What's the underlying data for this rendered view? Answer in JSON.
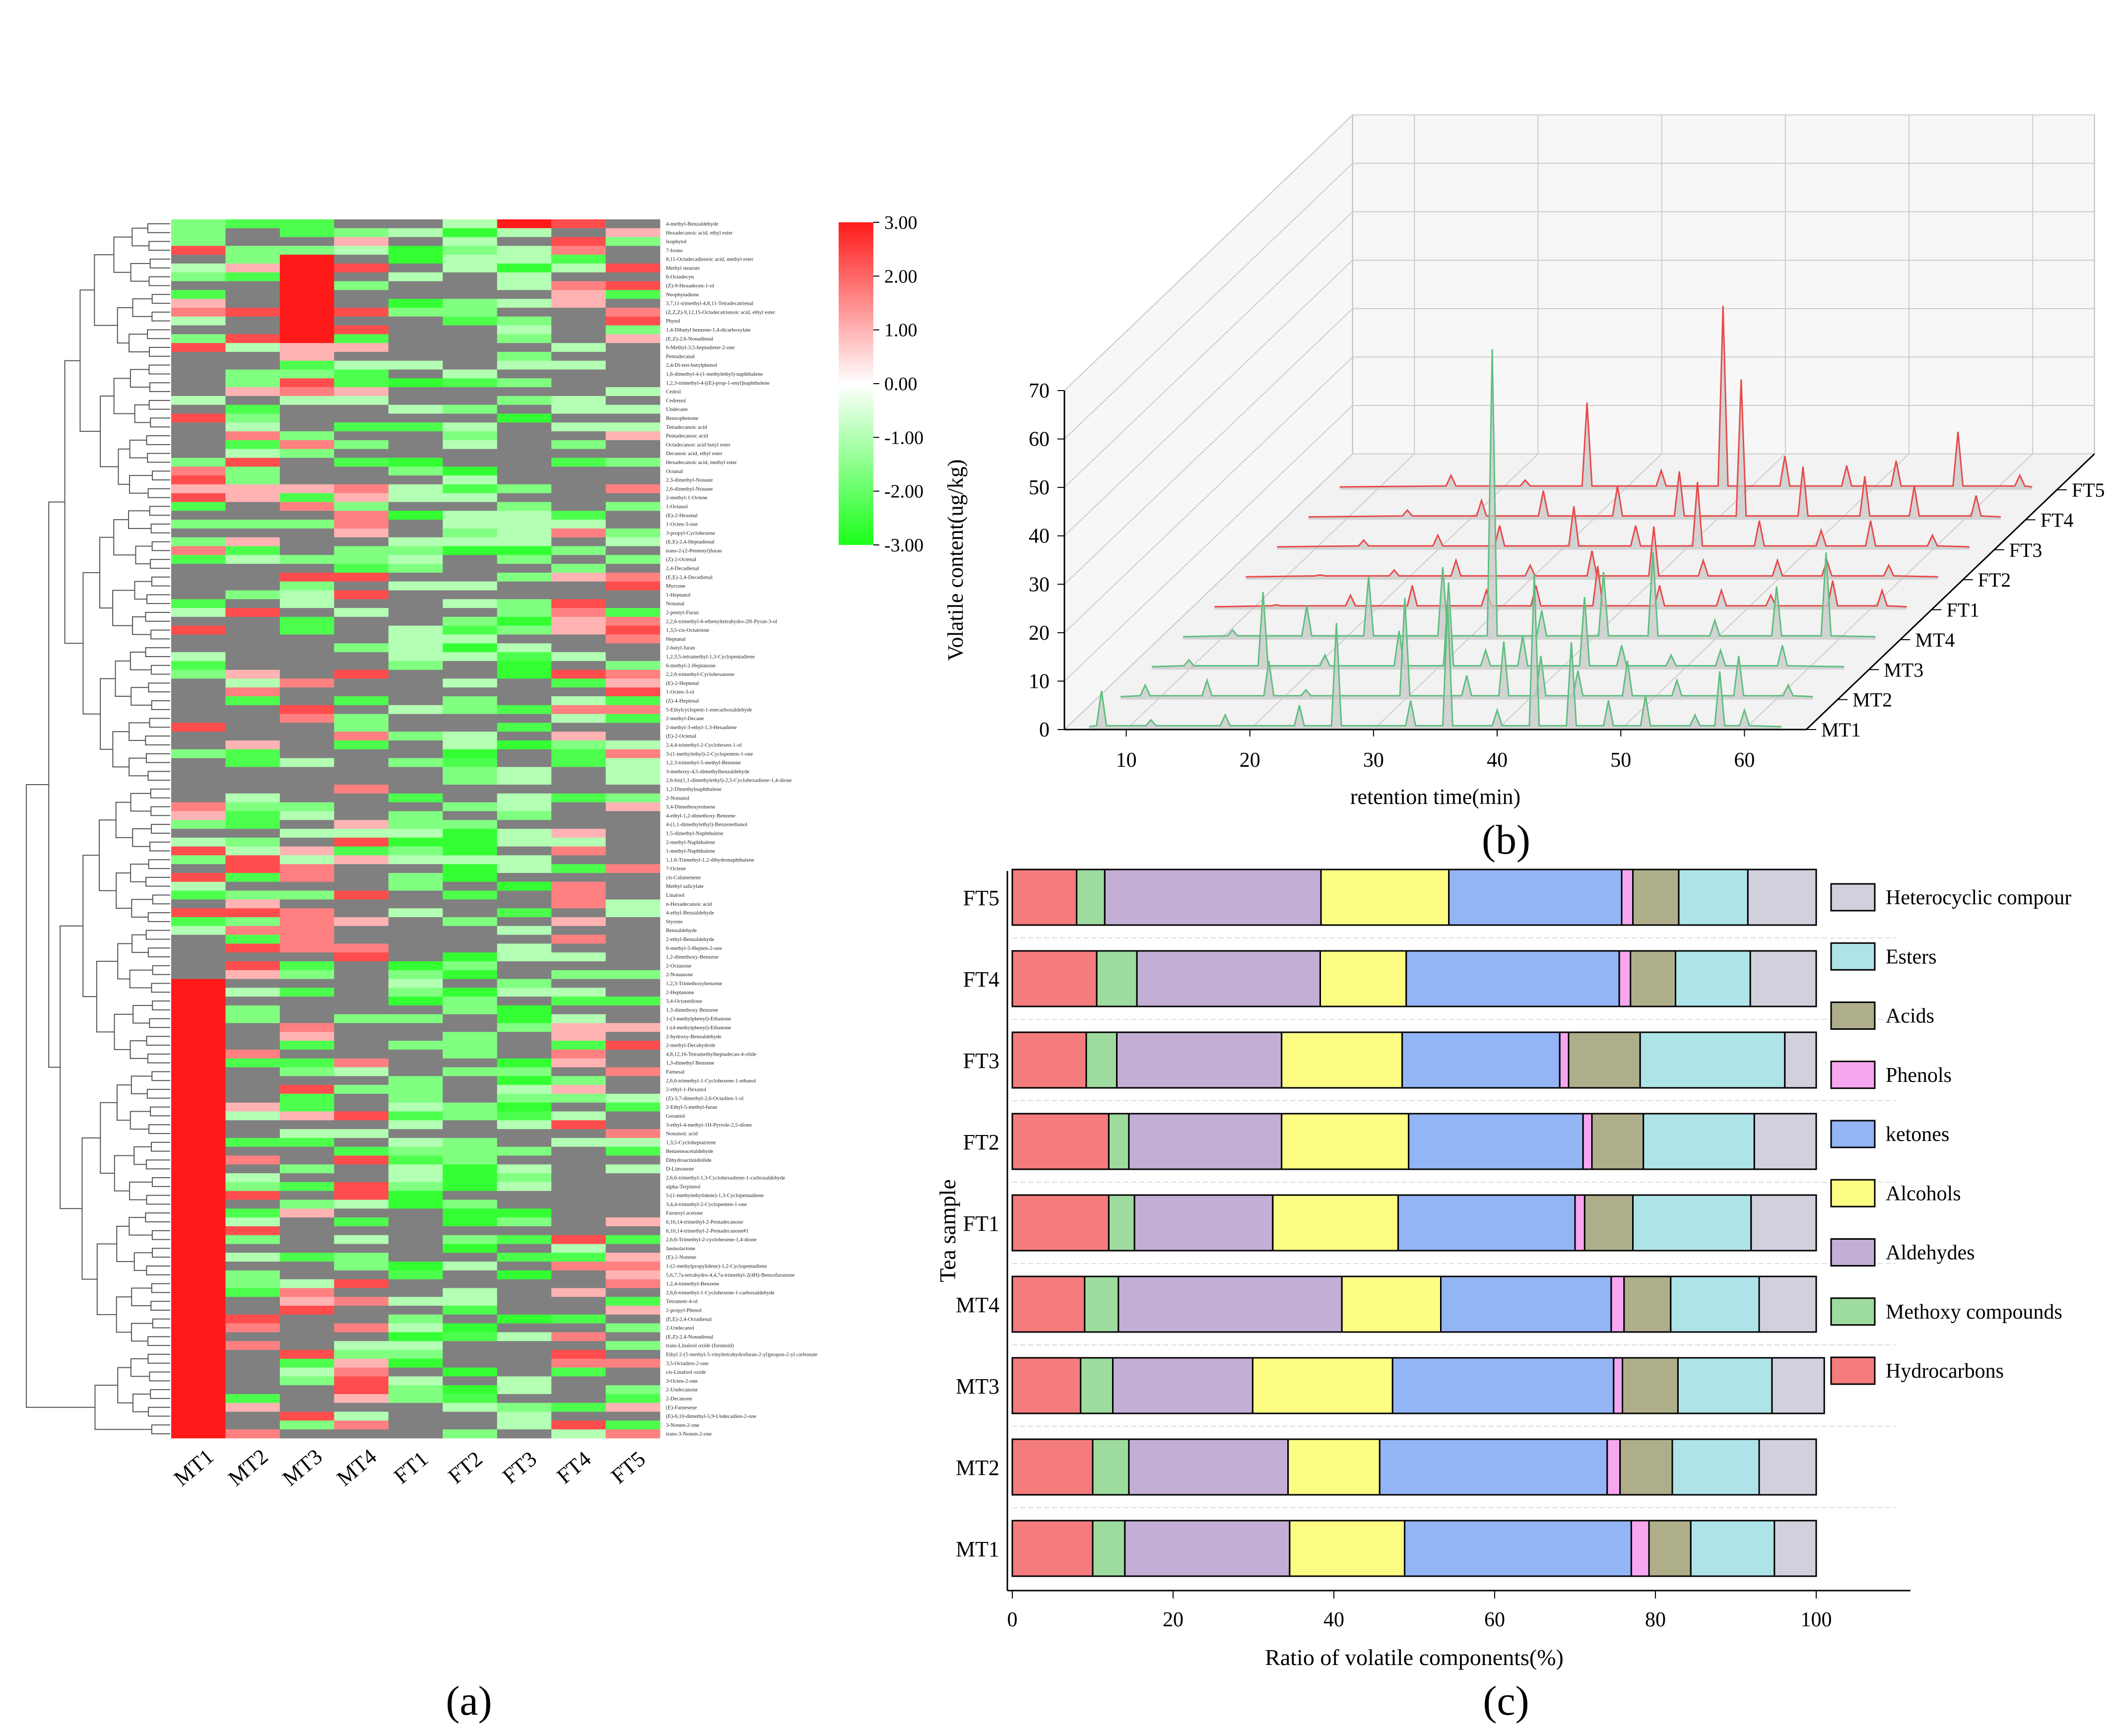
{
  "panel_labels": {
    "a": "(a)",
    "b": "(b)",
    "c": "(c)"
  },
  "chart_data": [
    {
      "type": "heatmap",
      "panel": "a",
      "columns": [
        "MT1",
        "MT2",
        "MT3",
        "MT4",
        "FT1",
        "FT2",
        "FT3",
        "FT4",
        "FT5"
      ],
      "colorbar": {
        "ticks": [
          "3.00",
          "2.00",
          "1.00",
          "0.00",
          "-1.00",
          "-2.00",
          "-3.00"
        ],
        "range": [
          -3,
          3
        ],
        "colors": {
          "high": "#ff1a1a",
          "mid": "#ffffff",
          "low": "#1aff1a",
          "missing": "#808080"
        }
      },
      "row_labels": [
        "4-methyl-Benzaldehyde",
        "Hexadecanoic acid, ethyl ester",
        "Isophytol",
        "7-Isono",
        "8,11-Octadecadienoic acid, methyl ester",
        "Methyl stearate",
        "6-Octadecyn",
        "(Z)-9-Hexadecen-1-ol",
        "Neophytadiene",
        "3,7,11-trimethyl-4,8,11-Tetradecatrienal",
        "(Z,Z,Z)-9,12,15-Octadecatrienoic acid, ethyl ester",
        "Phytol",
        "1,4-Dibutyl benzene-1,4-dicarboxylate",
        "(E,Z)-2,6-Nonadienal",
        "6-Methyl-3,5-heptadiene-2-one",
        "Pentadecanal",
        "2,4-Di-tert-butylphenol",
        "1,6-dimethyl-4-(1-methylethyl)-naphthalene",
        "1,2,3-trimethyl-4-[(E)-prop-1-enyl]naphthalene",
        "Cedrol",
        "Cedrenol",
        "Undecane",
        "Benzophenone",
        "Tetradecanoic acid",
        "Pentadecanoic acid",
        "Octadecanoic acid butyl ester",
        "Decanoic acid, ethyl ester",
        "Hexadecanoic acid, methyl ester",
        "Octanal",
        "2,3-dimethyl-Nonane",
        "2,6-dimethyl-Nonane",
        "2-methyl-1-Octene",
        "1-Octanol",
        "(E)-2-Hexenal",
        "1-Octen-3-one",
        "3-propyl-Cyclohexene",
        "(E,E)-2,4-Heptadienal",
        "trans-2-(2-Pentenyl)furan",
        "(Z)-2-Octenal",
        "2,4-Decadienal",
        "(E,E)-2,4-Decadienal",
        "Myrcene",
        "1-Heptanol",
        "Nonanal",
        "2-pentyl-Furan",
        "2,2,6-trimethyl-6-ethenyltetrahydro-2H-Pyran-3-ol",
        "1,3,5-cis-Octatriene",
        "Heptanal",
        "2-butyl-furan",
        "1,2,3,5-tetramethyl-1,3-Cyclopentadiene",
        "6-methyl-2-Heptanone",
        "2,2,6-trimethyl-Cyclohexanone",
        "(E)-2-Heptenal",
        "1-Octen-3-ol",
        "(Z)-4-Heptenal",
        "5-Ethylcyclopent-1-enecarboxaldehyde",
        "2-methyl-Decane",
        "2-methyl-3-ethyl-1,3-Hexadiene",
        "(E)-2-Octenal",
        "2,4,4-trimethyl-2-Cyclohexen-1-ol",
        "3-(1-methylethyl)-2-Cyclopenten-1-one",
        "1,2,3-trimethyl-5-methyl-Benzene",
        "3-methoxy-4,5-dimethylbenzaldehyde",
        "2,6-bis(1,1-dimethylethyl)-2,5-Cyclohexadiene-1,4-dione",
        "1,2-Dimethylnaphthalene",
        "2-Nonanol",
        "3,4-Dimethoxytoluene",
        "4-ethyl-1,2-dimethoxy Benzene",
        "4-(1,1-dimethylethyl)-Benzenethanol",
        "1,5-dimethyl-Naphthalene",
        "2-methyl-Naphthalene",
        "1-methyl-Naphthalene",
        "1,1,6-Trimethyl-1,2-dihydronaphthalene",
        "7-Octene",
        "cis-Calamenene",
        "Methyl salicylate",
        "Linalool",
        "n-Hexadecanoic acid",
        "4-ethyl-Benzaldehyde",
        "Styrene",
        "Benzaldehyde",
        "2-ethyl-Benzaldehyde",
        "6-methyl-5-Hepten-2-one",
        "1,2-dimethoxy-Benzene",
        "2-Octanone",
        "2-Nonanone",
        "1,2,3-Trimethoxybenzene",
        "2-Heptanone",
        "3,4-Octanedione",
        "1,3-dimethoxy Benzene",
        "1-(3-methylphenyl)-Ethanone",
        "1-(4-methylphenyl)-Ethanone",
        "2-hydroxy-Benzaldehyde",
        "2-methyl-Decahydrole",
        "4,8,12,16-Tetramethylheptadecan-4-olide",
        "1,3-dimethyl Benzene",
        "Farnesal",
        "2,6,6-trimethyl-1-Cyclohexene-1-ethanol",
        "2-ethyl-1-Hexanol",
        "(Z)-3,7-dimethyl-2,6-Octadien-1-ol",
        "2-Ethyl-5-methyl-furan",
        "Geraniol",
        "3-ethyl-4-methyl-1H-Pyrrole-2,5-dione",
        "Nonanoic acid",
        "1,3,5-Cycloheptatriene",
        "Benzeneacetaldehyde",
        "Dihydroactinidiolide",
        "D-Limonene",
        "2,6,6-trimethyl-1,3-Cyclohexadiene-1-carboxaldehyde",
        "alpha-Terpineol",
        "5-(1-methylethylidene)-1,3-Cyclopentadiene",
        "3,4,4-trimethyl-2-Cyclopenten-1-one",
        "Farnesyl acetone",
        "6,10,14-trimethyl-2-Pentadecanone",
        "6,10,14-trimethyl-2-Pentadecanone#1",
        "2,6,6-Trimethyl-2-cyclohexene-1,4-dione",
        "Jasmolactone",
        "(E)-2-Nonene",
        "1-(2-methylpropylidene)-1,2-Cyclopentadiene",
        "5,6,7,7a-tetrahydro-4,4,7a-trimethyl-2(4H)-Benzofuranone",
        "1,2,4-trimethyl-Benzene",
        "2,6,6-trimethyl-1-Cyclohexene-1-carboxaldehyde",
        "Tetrametr-4-ol",
        "2-propyl-Phenol",
        "(E,E)-2,4-Octadienal",
        "2-Undecanol",
        "(E,Z)-2,4-Nonadienal",
        "trans-Linalool oxide (furanoid)",
        "Ethyl 2-(5-methyl-5-vinyltetrahydrofuran-2-yl)propan-2-yl carbonate",
        "3,5-Octadien-2-one",
        "cis-Linalool oxide",
        "3-Octen-2-one",
        "2-Undecanone",
        "2-Decanone",
        "(E)-Farnesene",
        "(E)-6,10-dimethyl-5,9-Undecadien-2-one",
        "3-Nonen-2-one",
        "trans-3-Nonen-2-one"
      ]
    },
    {
      "type": "line",
      "panel": "b",
      "subtype": "3d-waterfall",
      "xlabel": "retention time(min)",
      "ylabel": "Volatile content(ug/kg)",
      "x_ticks": [
        10,
        20,
        30,
        40,
        50,
        60
      ],
      "y_ticks": [
        0,
        10,
        20,
        30,
        40,
        50,
        60,
        70
      ],
      "xlim": [
        5,
        65
      ],
      "ylim": [
        0,
        70
      ],
      "series_colors": {
        "MT": "#5fbf7f",
        "FT": "#e84a4a",
        "fill": "#c8c8c8"
      },
      "series": [
        {
          "name": "MT1",
          "peaks": [
            [
              8,
              8
            ],
            [
              12,
              2
            ],
            [
              18,
              3
            ],
            [
              24,
              5
            ],
            [
              27,
              22
            ],
            [
              33,
              6
            ],
            [
              36,
              26
            ],
            [
              40,
              4
            ],
            [
              43,
              32
            ],
            [
              46,
              18
            ],
            [
              49,
              6
            ],
            [
              52,
              7
            ],
            [
              56,
              3
            ],
            [
              58,
              12
            ],
            [
              60,
              4
            ]
          ]
        },
        {
          "name": "MT2",
          "peaks": [
            [
              9,
              3
            ],
            [
              14,
              4
            ],
            [
              19,
              8
            ],
            [
              22,
              2
            ],
            [
              30,
              21
            ],
            [
              35,
              5
            ],
            [
              38,
              12
            ],
            [
              41,
              9
            ],
            [
              44,
              6
            ],
            [
              48,
              8
            ],
            [
              52,
              4
            ],
            [
              57,
              9
            ],
            [
              61,
              3
            ]
          ]
        },
        {
          "name": "MT3",
          "peaks": [
            [
              10,
              2
            ],
            [
              16,
              16
            ],
            [
              21,
              3
            ],
            [
              27,
              8
            ],
            [
              31,
              18
            ],
            [
              34,
              4
            ],
            [
              37,
              7
            ],
            [
              42,
              15
            ],
            [
              45,
              5
            ],
            [
              49,
              3
            ],
            [
              53,
              4
            ],
            [
              58,
              5
            ]
          ]
        },
        {
          "name": "MT4",
          "peaks": [
            [
              11,
              2
            ],
            [
              17,
              7
            ],
            [
              22,
              13
            ],
            [
              28,
              15
            ],
            [
              32,
              60
            ],
            [
              36,
              6
            ],
            [
              41,
              14
            ],
            [
              45,
              18
            ],
            [
              50,
              4
            ],
            [
              55,
              11
            ],
            [
              59,
              18
            ]
          ]
        },
        {
          "name": "FT1",
          "peaks": [
            [
              12,
              1
            ],
            [
              18,
              3
            ],
            [
              23,
              5
            ],
            [
              29,
              4
            ],
            [
              33,
              5
            ],
            [
              38,
              9
            ],
            [
              43,
              5
            ],
            [
              48,
              4
            ],
            [
              52,
              3
            ],
            [
              57,
              6
            ],
            [
              61,
              4
            ]
          ]
        },
        {
          "name": "FT2",
          "peaks": [
            [
              13,
              1
            ],
            [
              19,
              2
            ],
            [
              24,
              4
            ],
            [
              30,
              3
            ],
            [
              35,
              6
            ],
            [
              40,
              11
            ],
            [
              44,
              4
            ],
            [
              50,
              4
            ],
            [
              54,
              4
            ],
            [
              59,
              3
            ]
          ]
        },
        {
          "name": "FT3",
          "peaks": [
            [
              14,
              2
            ],
            [
              20,
              3
            ],
            [
              25,
              5
            ],
            [
              31,
              9
            ],
            [
              36,
              5
            ],
            [
              41,
              14
            ],
            [
              46,
              6
            ],
            [
              51,
              4
            ],
            [
              55,
              6
            ],
            [
              60,
              3
            ]
          ]
        },
        {
          "name": "FT4",
          "peaks": [
            [
              15,
              2
            ],
            [
              21,
              4
            ],
            [
              26,
              6
            ],
            [
              32,
              7
            ],
            [
              37,
              10
            ],
            [
              42,
              29
            ],
            [
              47,
              11
            ],
            [
              52,
              9
            ],
            [
              56,
              7
            ],
            [
              61,
              5
            ]
          ]
        },
        {
          "name": "FT5",
          "peaks": [
            [
              16,
              3
            ],
            [
              22,
              2
            ],
            [
              27,
              18
            ],
            [
              33,
              4
            ],
            [
              38,
              38
            ],
            [
              43,
              7
            ],
            [
              48,
              5
            ],
            [
              52,
              6
            ],
            [
              57,
              12
            ],
            [
              62,
              3
            ]
          ]
        }
      ]
    },
    {
      "type": "bar",
      "panel": "c",
      "orientation": "horizontal",
      "stacked": true,
      "xlabel": "Ratio of volatile components(%)",
      "ylabel": "Tea sample",
      "xlim": [
        0,
        100
      ],
      "x_ticks": [
        0,
        20,
        40,
        60,
        80,
        100
      ],
      "categories": [
        "MT1",
        "MT2",
        "MT3",
        "MT4",
        "FT1",
        "FT2",
        "FT3",
        "FT4",
        "FT5"
      ],
      "legend": {
        "placement": "right"
      },
      "series": [
        {
          "name": "Hydrocarbons",
          "color": "#f57c7c",
          "values": [
            10.0,
            10.0,
            8.5,
            9.0,
            12.0,
            12.0,
            9.2,
            10.5,
            8.0
          ]
        },
        {
          "name": "Methoxy compounds",
          "color": "#9edb9e",
          "values": [
            4.0,
            4.5,
            4.0,
            4.2,
            3.2,
            2.5,
            3.8,
            5.0,
            3.5
          ]
        },
        {
          "name": "Aldehydes",
          "color": "#c3aed6",
          "values": [
            20.5,
            19.8,
            17.4,
            27.8,
            17.2,
            19.0,
            20.5,
            22.8,
            26.9
          ]
        },
        {
          "name": "Alcohols",
          "color": "#fdfd84",
          "values": [
            14.3,
            11.4,
            17.4,
            12.3,
            15.6,
            15.8,
            15.0,
            10.7,
            15.9
          ]
        },
        {
          "name": "ketones",
          "color": "#93b4f5",
          "values": [
            28.2,
            28.3,
            27.5,
            21.2,
            22.0,
            21.7,
            19.6,
            26.5,
            21.5
          ]
        },
        {
          "name": "Phenols",
          "color": "#f7a6f0",
          "values": [
            2.2,
            1.6,
            1.1,
            1.6,
            1.2,
            1.1,
            1.1,
            1.4,
            1.4
          ]
        },
        {
          "name": "Acids",
          "color": "#aeae8a",
          "values": [
            5.2,
            6.5,
            6.9,
            5.8,
            6.0,
            6.4,
            8.9,
            5.6,
            5.7
          ]
        },
        {
          "name": "Esters",
          "color": "#aee3e8",
          "values": [
            10.4,
            10.8,
            11.7,
            11.0,
            14.7,
            13.8,
            18.0,
            9.3,
            8.6
          ]
        },
        {
          "name": "Heterocyclic compour",
          "color": "#d3d0de",
          "values": [
            5.2,
            7.1,
            6.5,
            7.1,
            8.1,
            7.7,
            3.9,
            8.2,
            8.5
          ]
        }
      ]
    }
  ]
}
